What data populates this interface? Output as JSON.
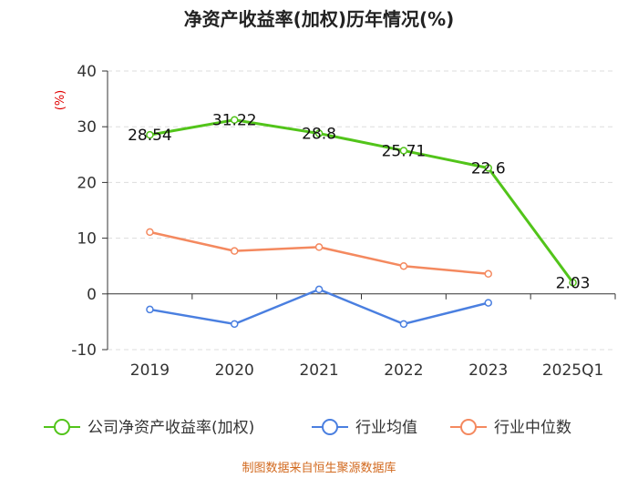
{
  "chart_data": {
    "type": "line",
    "title": "净资产收益率(加权)历年情况(%)",
    "ylabel": "(%)",
    "xlabel": "",
    "ylim": [
      -10,
      40
    ],
    "yticks": [
      -10,
      0,
      10,
      20,
      30,
      40
    ],
    "grid": true,
    "categories": [
      "2019",
      "2020",
      "2021",
      "2022",
      "2023",
      "2025Q1"
    ],
    "series": [
      {
        "name": "公司净资产收益率(加权)",
        "color": "#52c41a",
        "values": [
          28.54,
          31.22,
          28.8,
          25.71,
          22.6,
          2.03
        ],
        "labels": [
          "28.54",
          "31.22",
          "28.8",
          "25.71",
          "22.6",
          "2.03"
        ]
      },
      {
        "name": "行业均值",
        "color": "#4a7fe0",
        "values": [
          -2.8,
          -5.4,
          0.8,
          -5.4,
          -1.6,
          null
        ]
      },
      {
        "name": "行业中位数",
        "color": "#f4895f",
        "values": [
          11.1,
          7.7,
          8.4,
          5.0,
          3.6,
          null
        ]
      }
    ],
    "legend_position": "bottom",
    "source": "制图数据来自恒生聚源数据库"
  }
}
